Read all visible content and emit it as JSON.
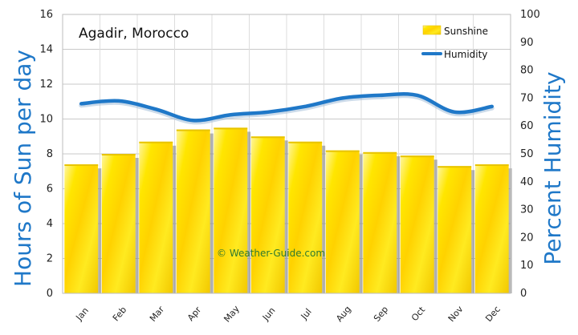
{
  "chart_data": {
    "type": "bar",
    "title": "Agadir, Morocco",
    "watermark": "© Weather-Guide.com",
    "categories": [
      "Jan",
      "Feb",
      "Mar",
      "Apr",
      "May",
      "Jun",
      "Jul",
      "Aug",
      "Sep",
      "Oct",
      "Nov",
      "Dec"
    ],
    "series": [
      {
        "name": "Sunshine",
        "type": "bar",
        "axis": "left",
        "values": [
          7.4,
          8.0,
          8.7,
          9.4,
          9.5,
          9.0,
          8.7,
          8.2,
          8.1,
          7.9,
          7.3,
          7.4
        ],
        "color": "#ffe600"
      },
      {
        "name": "Humidity",
        "type": "line",
        "axis": "right",
        "values": [
          68,
          69,
          66,
          62,
          64,
          65,
          67,
          70,
          71,
          71,
          65,
          67
        ],
        "color": "#1f78c8"
      }
    ],
    "ylabel_left": "Hours of Sun per day",
    "ylabel_right": "Percent Humidity",
    "ylim_left": [
      0,
      16
    ],
    "yticks_left": [
      "0",
      "2",
      "4",
      "6",
      "8",
      "10",
      "12",
      "14",
      "16"
    ],
    "ylim_right": [
      0,
      100
    ],
    "yticks_right": [
      "0",
      "10",
      "20",
      "30",
      "40",
      "50",
      "60",
      "70",
      "80",
      "90",
      "100"
    ],
    "grid": true,
    "legend_position": "top-right"
  }
}
